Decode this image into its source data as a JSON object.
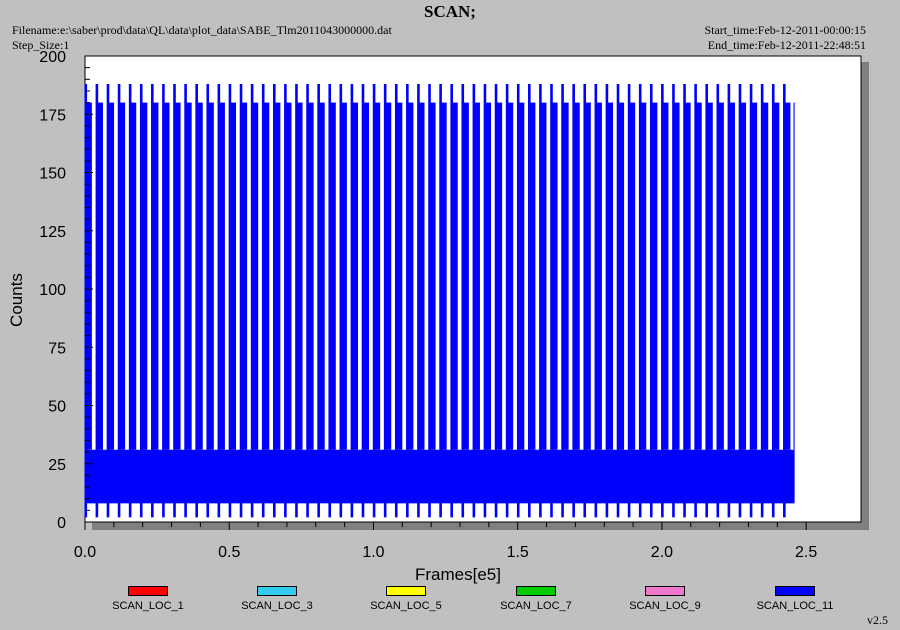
{
  "header": {
    "title": "SCAN;",
    "filename": "Filename:e:\\saber\\prod\\data\\QL\\data\\plot_data\\SABE_Tlm2011043000000.dat",
    "step_size": "Step_Size:1",
    "start_time": "Start_time:Feb-12-2011-00:00:15",
    "end_time": "End_time:Feb-12-2011-22:48:51"
  },
  "version": "v2.5",
  "colors": {
    "background": "#c0c0c0",
    "plot_area": "#ffffff",
    "shadow": "#808080",
    "data": "#0000ff"
  },
  "chart_data": {
    "type": "line",
    "title": "SCAN;",
    "xlabel": "Frames[e5]",
    "ylabel": "Counts",
    "xlim": [
      0,
      2.6
    ],
    "ylim": [
      0,
      200
    ],
    "x_ticks": [
      "0.0",
      "0.5",
      "1.0",
      "1.5",
      "2.0",
      "2.5"
    ],
    "y_ticks": [
      "0",
      "25",
      "50",
      "75",
      "100",
      "125",
      "150",
      "175",
      "200"
    ],
    "grid": false,
    "legend_position": "bottom",
    "data_x_range": [
      0.0,
      2.46
    ],
    "band": {
      "x": [
        0.0,
        2.46
      ],
      "y_low": 8,
      "y_high": 31
    },
    "spike_top": 180,
    "tall_spike_top": 188,
    "spike_bottom": 2,
    "spike_count": 64,
    "series": [
      {
        "name": "SCAN_LOC_1",
        "color": "#ff0000"
      },
      {
        "name": "SCAN_LOC_3",
        "color": "#33ccee"
      },
      {
        "name": "SCAN_LOC_5",
        "color": "#ffff00"
      },
      {
        "name": "SCAN_LOC_7",
        "color": "#00cc00"
      },
      {
        "name": "SCAN_LOC_9",
        "color": "#ee77cc"
      },
      {
        "name": "SCAN_LOC_11",
        "color": "#0000ff"
      }
    ]
  }
}
